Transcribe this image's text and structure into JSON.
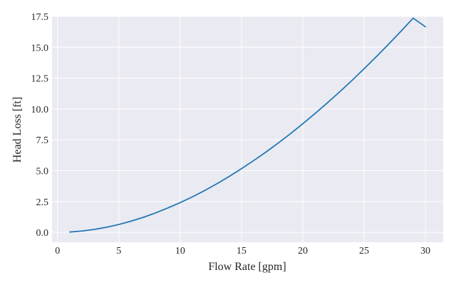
{
  "chart_data": {
    "type": "line",
    "title": "",
    "xlabel": "Flow Rate [gpm]",
    "ylabel": "Head Loss [ft]",
    "xlim": [
      -0.45,
      31.45
    ],
    "ylim": [
      -0.8,
      17.5
    ],
    "x_ticks": [
      0,
      5,
      10,
      15,
      20,
      25,
      30
    ],
    "x_tick_labels": [
      "0",
      "5",
      "10",
      "15",
      "20",
      "25",
      "30"
    ],
    "y_ticks": [
      0.0,
      2.5,
      5.0,
      7.5,
      10.0,
      12.5,
      15.0,
      17.5
    ],
    "y_tick_labels": [
      "0.0",
      "2.5",
      "5.0",
      "7.5",
      "10.0",
      "12.5",
      "15.0",
      "17.5"
    ],
    "grid": true,
    "plot_background": "#eaeaf2",
    "series": [
      {
        "color": "#1f77b4",
        "x": [
          1,
          2,
          3,
          4,
          5,
          6,
          7,
          8,
          9,
          10,
          11,
          12,
          13,
          14,
          15,
          16,
          17,
          18,
          19,
          20,
          21,
          22,
          23,
          24,
          25,
          26,
          27,
          28,
          29,
          30
        ],
        "y": [
          0.03,
          0.11,
          0.24,
          0.42,
          0.64,
          0.91,
          1.22,
          1.58,
          1.98,
          2.41,
          2.88,
          3.39,
          3.94,
          4.53,
          5.16,
          5.82,
          6.51,
          7.24,
          8.0,
          8.8,
          9.63,
          10.49,
          11.38,
          12.3,
          13.26,
          14.24,
          15.25,
          16.29,
          17.36,
          16.66
        ]
      }
    ]
  }
}
